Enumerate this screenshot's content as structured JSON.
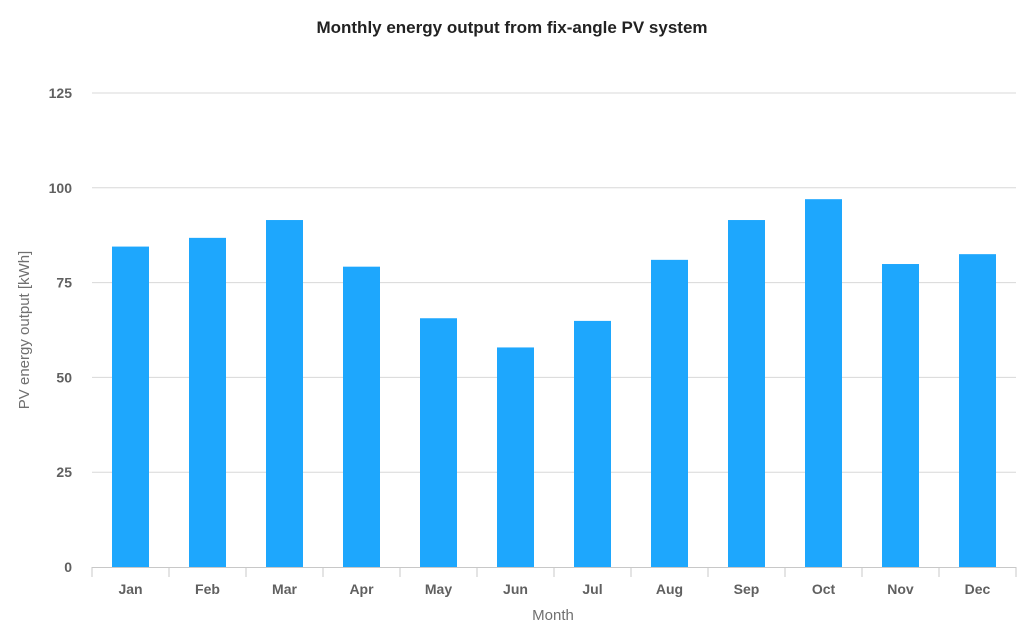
{
  "chart_data": {
    "type": "bar",
    "title": "Monthly energy output from fix-angle PV system",
    "xlabel": "Month",
    "ylabel": "PV energy output [kWh]",
    "categories": [
      "Jan",
      "Feb",
      "Mar",
      "Apr",
      "May",
      "Jun",
      "Jul",
      "Aug",
      "Sep",
      "Oct",
      "Nov",
      "Dec"
    ],
    "values": [
      84.5,
      86.8,
      91.5,
      79.2,
      65.6,
      57.9,
      64.9,
      81.0,
      91.5,
      97.0,
      79.9,
      82.5
    ],
    "ylim": [
      0,
      125
    ],
    "yticks": [
      0,
      25,
      50,
      75,
      100,
      125
    ],
    "grid": true,
    "legend": "none",
    "bar_color": "#1ea7fd"
  }
}
